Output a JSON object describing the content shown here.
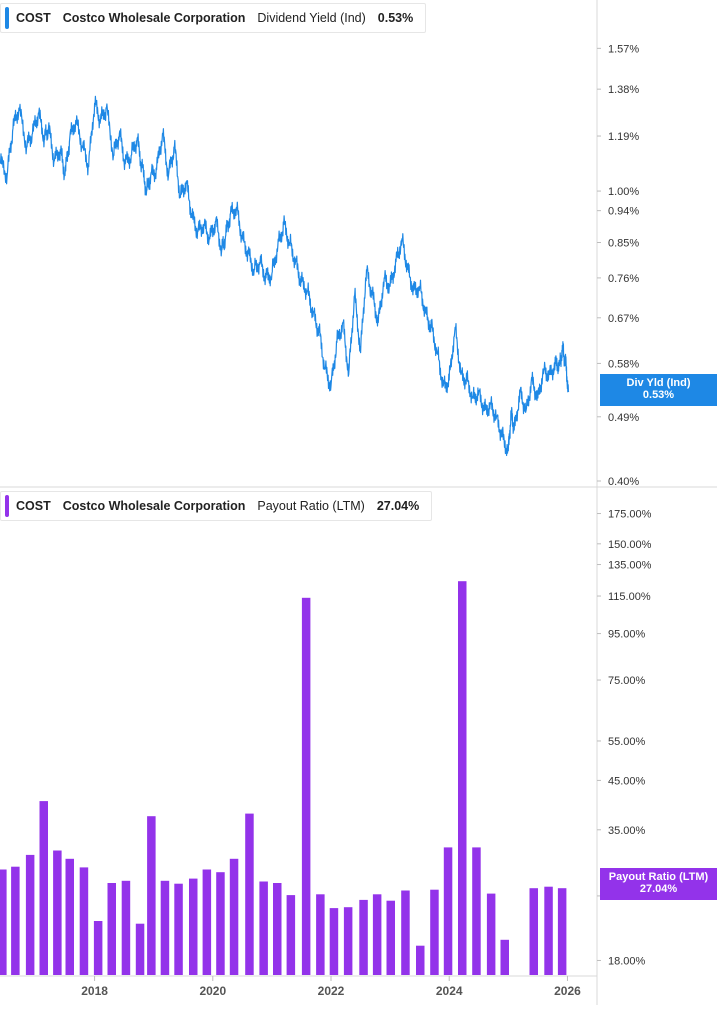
{
  "chart_data": [
    {
      "type": "line",
      "ticker": "COST",
      "company": "Costco Wholesale Corporation",
      "metric": "Dividend Yield (Ind)",
      "current_value": "0.53%",
      "current_label_name": "Div Yld (Ind)",
      "color": "#1e88e5",
      "y_scale": "log",
      "ylim": [
        0.4,
        1.75
      ],
      "y_ticks": [
        "1.57%",
        "1.38%",
        "1.19%",
        "1.00%",
        "0.94%",
        "0.85%",
        "0.76%",
        "0.67%",
        "0.58%",
        "0.49%",
        "0.40%"
      ],
      "y_tick_values": [
        1.57,
        1.38,
        1.19,
        1.0,
        0.94,
        0.85,
        0.76,
        0.67,
        0.58,
        0.49,
        0.4
      ],
      "x_ticks": [
        "2018",
        "2020",
        "2022",
        "2024",
        "2026"
      ],
      "xlim": [
        2016.4,
        2026.5
      ],
      "grid": false,
      "series": [
        {
          "x": [
            2016.4,
            2016.52,
            2016.62,
            2016.72,
            2016.85,
            2016.95,
            2017.05,
            2017.15,
            2017.22,
            2017.32,
            2017.42,
            2017.5,
            2017.58,
            2017.68,
            2017.8,
            2017.9,
            2018.0,
            2018.1,
            2018.2,
            2018.32,
            2018.42,
            2018.52,
            2018.62,
            2018.72,
            2018.8,
            2018.88,
            2018.95,
            2019.05,
            2019.15,
            2019.25,
            2019.35,
            2019.45,
            2019.55,
            2019.65,
            2019.75,
            2019.85,
            2019.95,
            2020.05,
            2020.15,
            2020.22,
            2020.3,
            2020.4,
            2020.5,
            2020.6,
            2020.7,
            2020.8,
            2020.9,
            2021.0,
            2021.1,
            2021.2,
            2021.3,
            2021.4,
            2021.5,
            2021.6,
            2021.7,
            2021.8,
            2021.9,
            2022.0,
            2022.1,
            2022.2,
            2022.3,
            2022.4,
            2022.5,
            2022.6,
            2022.7,
            2022.8,
            2022.9,
            2023.0,
            2023.1,
            2023.2,
            2023.3,
            2023.4,
            2023.5,
            2023.6,
            2023.7,
            2023.8,
            2023.9,
            2024.0,
            2024.1,
            2024.2,
            2024.3,
            2024.4,
            2024.5,
            2024.6,
            2024.7,
            2024.8,
            2024.9,
            2025.0,
            2025.05,
            2025.1,
            2025.2,
            2025.3,
            2025.4,
            2025.5,
            2025.6,
            2025.7,
            2025.8,
            2025.87,
            2025.92,
            2025.97,
            2026.02
          ],
          "y": [
            1.1,
            1.05,
            1.22,
            1.3,
            1.15,
            1.2,
            1.28,
            1.18,
            1.22,
            1.1,
            1.14,
            1.05,
            1.18,
            1.25,
            1.15,
            1.08,
            1.32,
            1.25,
            1.3,
            1.12,
            1.2,
            1.09,
            1.12,
            1.18,
            1.08,
            1.0,
            1.05,
            1.07,
            1.2,
            1.05,
            1.15,
            0.98,
            1.03,
            0.92,
            0.88,
            0.9,
            0.86,
            0.91,
            0.83,
            0.87,
            0.93,
            0.95,
            0.86,
            0.82,
            0.78,
            0.8,
            0.76,
            0.77,
            0.84,
            0.9,
            0.85,
            0.8,
            0.75,
            0.73,
            0.68,
            0.64,
            0.57,
            0.54,
            0.62,
            0.66,
            0.56,
            0.72,
            0.6,
            0.78,
            0.72,
            0.66,
            0.76,
            0.74,
            0.8,
            0.86,
            0.78,
            0.73,
            0.74,
            0.68,
            0.65,
            0.6,
            0.54,
            0.55,
            0.65,
            0.56,
            0.55,
            0.52,
            0.53,
            0.5,
            0.51,
            0.49,
            0.46,
            0.44,
            0.5,
            0.47,
            0.53,
            0.5,
            0.55,
            0.52,
            0.57,
            0.56,
            0.58,
            0.58,
            0.61,
            0.58,
            0.53
          ]
        }
      ]
    },
    {
      "type": "bar",
      "ticker": "COST",
      "company": "Costco Wholesale Corporation",
      "metric": "Payout Ratio (LTM)",
      "current_value": "27.04%",
      "current_label_name": "Payout Ratio (LTM)",
      "color": "#9333ea",
      "y_scale": "log",
      "ylim": [
        17.5,
        180.0
      ],
      "y_ticks": [
        "175.00%",
        "150.00%",
        "135.00%",
        "115.00%",
        "95.00%",
        "75.00%",
        "55.00%",
        "45.00%",
        "35.00%",
        "25.00%",
        "18.00%"
      ],
      "y_tick_values": [
        175,
        150,
        135,
        115,
        95,
        75,
        55,
        45,
        35,
        25,
        18
      ],
      "x_ticks": [
        "2018",
        "2020",
        "2022",
        "2024",
        "2026"
      ],
      "xlim": [
        2016.4,
        2026.5
      ],
      "grid": false,
      "series": [
        {
          "x": [
            2016.44,
            2016.66,
            2016.91,
            2017.14,
            2017.37,
            2017.58,
            2017.82,
            2018.06,
            2018.29,
            2018.53,
            2018.77,
            2018.96,
            2019.19,
            2019.42,
            2019.67,
            2019.9,
            2020.13,
            2020.36,
            2020.62,
            2020.86,
            2021.09,
            2021.32,
            2021.58,
            2021.82,
            2022.05,
            2022.29,
            2022.55,
            2022.78,
            2023.01,
            2023.26,
            2023.51,
            2023.75,
            2023.98,
            2024.22,
            2024.46,
            2024.71,
            2024.94,
            2025.19,
            2025.43,
            2025.68,
            2025.91
          ],
          "values": [
            28.6,
            29.0,
            30.8,
            40.5,
            31.5,
            30.2,
            28.9,
            22.0,
            26.7,
            27.0,
            21.7,
            37.5,
            27.0,
            26.6,
            27.3,
            28.6,
            28.2,
            30.2,
            38.0,
            26.9,
            26.7,
            25.1,
            114.0,
            25.2,
            23.5,
            23.6,
            24.5,
            25.2,
            24.4,
            25.7,
            19.4,
            25.8,
            32.0,
            124.0,
            32.0,
            25.3,
            20.0,
            0,
            26.0,
            26.2,
            26.0
          ]
        }
      ]
    }
  ]
}
